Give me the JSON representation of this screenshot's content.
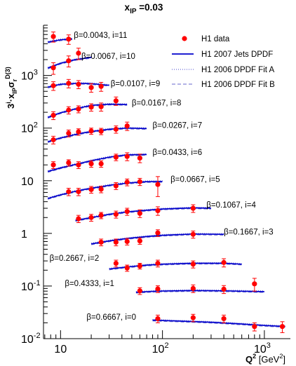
{
  "chart_data": {
    "type": "scatter",
    "title": "x_IP =0.03",
    "title_main": "x",
    "title_sub": "IP",
    "title_rest": " =0.03",
    "xlabel_main": "Q",
    "xlabel_sup": "2",
    "xlabel_unit": " [GeV",
    "xlabel_unit_sup": "2",
    "xlabel_close": "]",
    "ylabel_parts": [
      "3",
      "i",
      "·x",
      "IP",
      "σ",
      "r",
      "D(3)"
    ],
    "x_scale": "log",
    "y_scale": "log",
    "xlim": [
      6.8,
      1800
    ],
    "ylim": [
      0.01,
      9000
    ],
    "x_ticks": [
      10,
      100,
      1000
    ],
    "x_tick_labels": [
      {
        "base": "10",
        "exp": ""
      },
      {
        "base": "10",
        "exp": "2"
      },
      {
        "base": "10",
        "exp": "3"
      }
    ],
    "y_ticks": [
      0.01,
      0.1,
      1,
      10,
      100,
      1000
    ],
    "y_tick_labels": [
      {
        "base": "10",
        "exp": "-2"
      },
      {
        "base": "10",
        "exp": "-1"
      },
      {
        "base": "1",
        "exp": ""
      },
      {
        "base": "10",
        "exp": ""
      },
      {
        "base": "10",
        "exp": "2"
      },
      {
        "base": "10",
        "exp": "3"
      }
    ],
    "legend": {
      "placement": "top-right",
      "entries": [
        {
          "label": "H1 data",
          "style": "marker"
        },
        {
          "label": "H1 2007 Jets DPDF",
          "style": "solid"
        },
        {
          "label": "H1 2006 DPDF Fit A",
          "style": "dotted"
        },
        {
          "label": "H1 2006 DPDF Fit B",
          "style": "dashed"
        }
      ]
    },
    "colors": {
      "data": "#ff0000",
      "jets": "#0000cc",
      "fitA": "#4444cc",
      "fitB": "#6666cc"
    },
    "series": [
      {
        "label": "β=0.0043, i=11",
        "label_anchor": [
          13.5,
          5200
        ],
        "x": [
          8.5,
          12
        ],
        "y": [
          5500,
          4900
        ],
        "err": [
          1200,
          1000
        ],
        "fit": {
          "q2": [
            7.5,
            10,
            13
          ],
          "y": [
            4300,
            4750,
            4950
          ]
        }
      },
      {
        "label": "β=0.0067, i=10",
        "label_anchor": [
          16,
          2050
        ],
        "x": [
          8.5,
          12,
          15
        ],
        "y": [
          1400,
          1900,
          2650
        ],
        "err": [
          350,
          450,
          650
        ],
        "fit": {
          "q2": [
            7.5,
            10,
            14,
            20
          ],
          "y": [
            1380,
            1700,
            2000,
            2200
          ]
        }
      },
      {
        "label": "β=0.0107, i=9",
        "label_anchor": [
          31,
          620
        ],
        "x": [
          8.5,
          12,
          15,
          20,
          25
        ],
        "y": [
          640,
          710,
          680,
          590,
          620
        ],
        "err": [
          120,
          130,
          120,
          110,
          120
        ],
        "fit": {
          "q2": [
            7.5,
            10,
            15,
            20,
            30
          ],
          "y": [
            600,
            680,
            710,
            700,
            650
          ]
        }
      },
      {
        "label": "β=0.0167, i=8",
        "label_anchor": [
          50,
          270
        ],
        "x": [
          8.5,
          12,
          15,
          20,
          25,
          35
        ],
        "y": [
          175,
          220,
          230,
          250,
          255,
          330
        ],
        "err": [
          30,
          35,
          35,
          40,
          45,
          60
        ],
        "fit": {
          "q2": [
            7.5,
            10,
            15,
            20,
            30,
            45
          ],
          "y": [
            160,
            195,
            240,
            270,
            285,
            280
          ]
        }
      },
      {
        "label": "β=0.0267, i=7",
        "label_anchor": [
          80,
          100
        ],
        "x": [
          8.5,
          12,
          15,
          20,
          25,
          35,
          45
        ],
        "y": [
          60,
          80,
          85,
          88,
          87,
          95,
          110
        ],
        "err": [
          10,
          12,
          12,
          12,
          12,
          15,
          20
        ],
        "fit": {
          "q2": [
            7.5,
            10,
            15,
            20,
            30,
            45,
            70
          ],
          "y": [
            55,
            65,
            78,
            86,
            95,
            100,
            98
          ]
        }
      },
      {
        "label": "β=0.0433, i=6",
        "label_anchor": [
          80,
          31
        ],
        "x": [
          8.5,
          12,
          15,
          20,
          25,
          35,
          45,
          60
        ],
        "y": [
          20,
          22,
          20,
          21,
          21,
          28,
          29,
          27
        ],
        "err": [
          3,
          3,
          3,
          3,
          3,
          4,
          5,
          5
        ],
        "fit": {
          "q2": [
            7.5,
            10,
            15,
            20,
            30,
            45,
            70
          ],
          "y": [
            15,
            17.5,
            21,
            24,
            28,
            31,
            31.5
          ]
        }
      },
      {
        "label": "β=0.0667, i=5",
        "label_anchor": [
          120,
          9.5
        ],
        "x": [
          12,
          15,
          20,
          25,
          35,
          45,
          60,
          90
        ],
        "y": [
          6.2,
          6.2,
          6.8,
          6.9,
          8,
          9.4,
          9.6,
          8.5
        ],
        "err": [
          1,
          1,
          1,
          1,
          1.2,
          1.4,
          1.5,
          3.5
        ],
        "fit": {
          "q2": [
            7.5,
            10,
            15,
            20,
            30,
            45,
            70,
            100
          ],
          "y": [
            4.6,
            5.4,
            6.5,
            7.2,
            8.2,
            9,
            9.6,
            9.7
          ]
        }
      },
      {
        "label": "β=0.1067, i=4",
        "label_anchor": [
          270,
          3.1
        ],
        "x": [
          15,
          20,
          25,
          35,
          45,
          60,
          90,
          200
        ],
        "y": [
          1.9,
          2,
          2.2,
          2.3,
          2.6,
          2.4,
          2.7,
          3
        ],
        "err": [
          0.3,
          0.3,
          0.3,
          0.35,
          0.4,
          0.4,
          0.5,
          0.5
        ],
        "fit": {
          "q2": [
            14,
            20,
            30,
            45,
            70,
            100,
            200,
            300
          ],
          "y": [
            1.75,
            2,
            2.3,
            2.55,
            2.75,
            2.9,
            3.05,
            3
          ]
        }
      },
      {
        "label": "β=0.1667, i=3",
        "label_anchor": [
          400,
          0.95
        ],
        "x": [
          25,
          35,
          45,
          60,
          90,
          200
        ],
        "y": [
          0.68,
          0.68,
          0.7,
          0.72,
          1.02,
          0.96
        ],
        "err": [
          0.1,
          0.1,
          0.1,
          0.1,
          0.15,
          0.15
        ],
        "fit": {
          "q2": [
            20,
            30,
            45,
            70,
            100,
            200,
            400
          ],
          "y": [
            0.63,
            0.72,
            0.8,
            0.87,
            0.92,
            0.97,
            0.96
          ]
        }
      },
      {
        "label": "β=0.2667, i=2",
        "label_anchor": [
          7.8,
          0.3
        ],
        "x": [
          35,
          45,
          60,
          90,
          200,
          400
        ],
        "y": [
          0.27,
          0.22,
          0.24,
          0.27,
          0.26,
          0.28
        ],
        "err": [
          0.04,
          0.03,
          0.03,
          0.04,
          0.04,
          0.05
        ],
        "fit": {
          "q2": [
            30,
            45,
            70,
            100,
            200,
            400,
            600
          ],
          "y": [
            0.21,
            0.23,
            0.25,
            0.26,
            0.27,
            0.27,
            0.26
          ]
        }
      },
      {
        "label": "β=0.4333, i=1",
        "label_anchor": [
          11,
          0.1
        ],
        "x": [
          60,
          90,
          200,
          400,
          800
        ],
        "y": [
          0.081,
          0.088,
          0.09,
          0.087,
          0.11
        ],
        "err": [
          0.012,
          0.013,
          0.015,
          0.015,
          0.03
        ],
        "fit": {
          "q2": [
            55,
            90,
            200,
            400,
            1000
          ],
          "y": [
            0.076,
            0.08,
            0.082,
            0.081,
            0.078
          ]
        }
      },
      {
        "label": "β=0.6667, i=0",
        "label_anchor": [
          18,
          0.023
        ],
        "x": [
          90,
          200,
          400,
          800,
          1500
        ],
        "y": [
          0.024,
          0.025,
          0.024,
          0.017,
          0.017
        ],
        "err": [
          0.004,
          0.004,
          0.004,
          0.003,
          0.004
        ],
        "fit": {
          "q2": [
            80,
            150,
            300,
            600,
            1000,
            1600
          ],
          "y": [
            0.0225,
            0.0215,
            0.0205,
            0.019,
            0.0178,
            0.017
          ]
        }
      }
    ]
  }
}
